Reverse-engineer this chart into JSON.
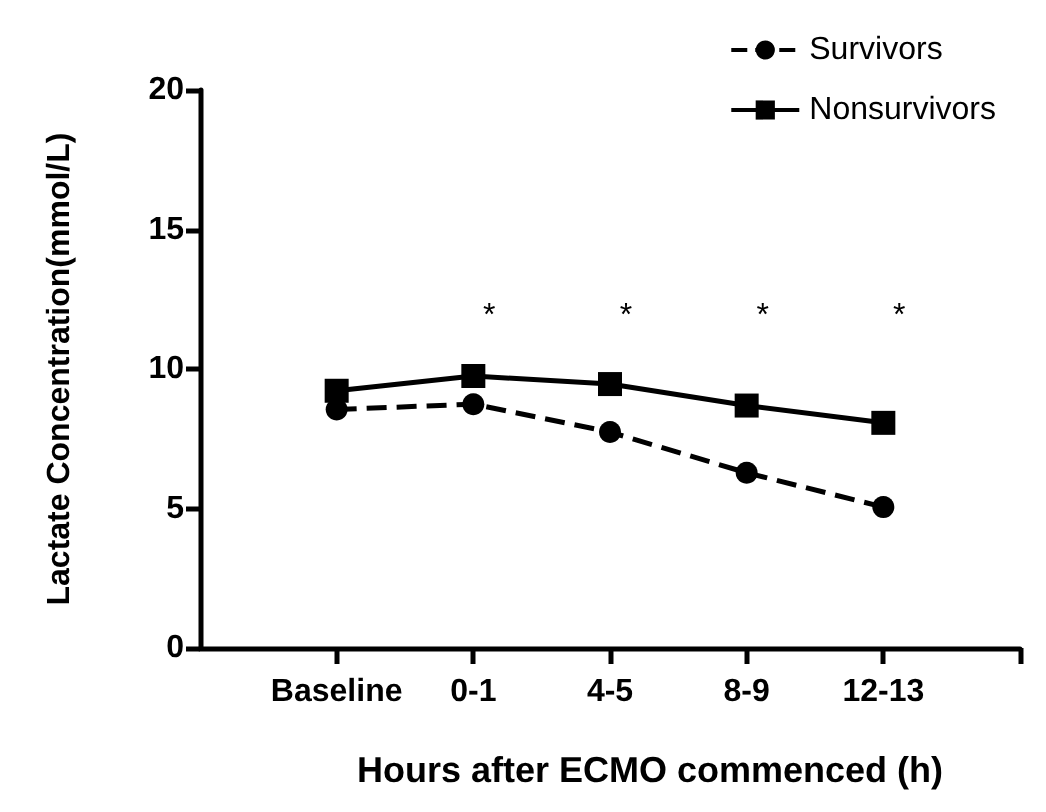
{
  "chart_data": {
    "type": "line",
    "xlabel": "Hours after ECMO commenced (h)",
    "ylabel": "Lactate Concentration(mmol/L)",
    "categories": [
      "Baseline",
      "0-1",
      "4-5",
      "8-9",
      "12-13"
    ],
    "series": [
      {
        "name": "Survivors",
        "color": "#000000",
        "values": [
          8.55,
          8.74,
          7.74,
          6.28,
          5.05
        ],
        "line_style": "dashed",
        "marker": "circle"
      },
      {
        "name": "Nonsurvivors",
        "color": "#000000",
        "values": [
          9.22,
          9.75,
          9.46,
          8.69,
          8.07
        ],
        "line_style": "solid",
        "marker": "square"
      }
    ],
    "ylim": [
      0,
      20
    ],
    "yticks": [
      0,
      5,
      10,
      15,
      20
    ],
    "grid": false,
    "legend": "top right",
    "annotations": [
      "*",
      "*",
      "*",
      "*"
    ]
  }
}
